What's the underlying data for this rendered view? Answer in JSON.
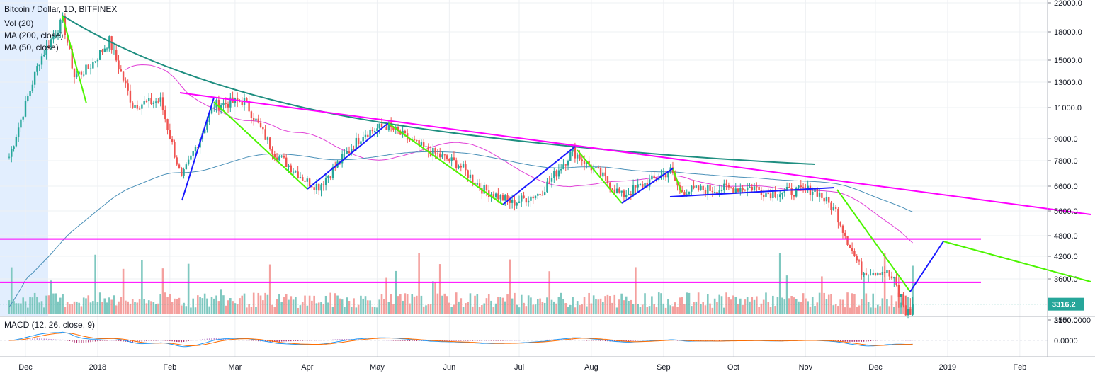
{
  "chart_data": {
    "type": "candlestick",
    "title": "Bitcoin / Dollar, 1D, BITFINEX",
    "indicators": [
      "Vol (20)",
      "MA (200, close)",
      "MA (50, close)"
    ],
    "macd_label": "MACD (12, 26, close, 9)",
    "last_price": "3316.2",
    "last_price_value": 3316.2,
    "y_ticks": [
      "22000.0",
      "18000.0",
      "15000.0",
      "13000.0",
      "11000.0",
      "9000.0",
      "7800.0",
      "6600.0",
      "5600.0",
      "4800.0",
      "4200.0",
      "3600.0",
      "3150.0"
    ],
    "y_tick_values": [
      22000,
      18000,
      15000,
      13000,
      11000,
      9000,
      7800,
      6600,
      5600,
      4800,
      4200,
      3600,
      3150
    ],
    "macd_ticks": [
      "2500.0000",
      "0.0000"
    ],
    "macd_tick_values": [
      2500,
      0
    ],
    "x_labels": [
      "Dec",
      "2018",
      "Feb",
      "Mar",
      "Apr",
      "May",
      "Jun",
      "Jul",
      "Aug",
      "Sep",
      "Oct",
      "Nov",
      "Dec",
      "2019",
      "Feb"
    ],
    "x_label_dates": [
      "2017-12-01",
      "2018-01-01",
      "2018-02-01",
      "2018-03-01",
      "2018-04-01",
      "2018-05-01",
      "2018-06-01",
      "2018-07-01",
      "2018-08-01",
      "2018-09-01",
      "2018-10-01",
      "2018-11-01",
      "2018-12-01",
      "2019-01-01",
      "2019-02-01"
    ],
    "price_key_points": [
      {
        "date": "2017-11-24",
        "close": 8000
      },
      {
        "date": "2017-12-07",
        "close": 15000
      },
      {
        "date": "2017-12-17",
        "close": 19500
      },
      {
        "date": "2017-12-22",
        "close": 13500
      },
      {
        "date": "2017-12-28",
        "close": 14200
      },
      {
        "date": "2018-01-06",
        "close": 17000
      },
      {
        "date": "2018-01-16",
        "close": 11200
      },
      {
        "date": "2018-01-28",
        "close": 11500
      },
      {
        "date": "2018-02-06",
        "close": 6900
      },
      {
        "date": "2018-02-20",
        "close": 11200
      },
      {
        "date": "2018-03-05",
        "close": 11500
      },
      {
        "date": "2018-03-18",
        "close": 8200
      },
      {
        "date": "2018-04-01",
        "close": 6800
      },
      {
        "date": "2018-04-06",
        "close": 6600
      },
      {
        "date": "2018-04-25",
        "close": 9300
      },
      {
        "date": "2018-05-05",
        "close": 9800
      },
      {
        "date": "2018-05-20",
        "close": 8500
      },
      {
        "date": "2018-06-05",
        "close": 7600
      },
      {
        "date": "2018-06-15",
        "close": 6500
      },
      {
        "date": "2018-06-28",
        "close": 5900
      },
      {
        "date": "2018-07-10",
        "close": 6300
      },
      {
        "date": "2018-07-24",
        "close": 8300
      },
      {
        "date": "2018-08-06",
        "close": 7000
      },
      {
        "date": "2018-08-14",
        "close": 6200
      },
      {
        "date": "2018-09-04",
        "close": 7300
      },
      {
        "date": "2018-09-08",
        "close": 6400
      },
      {
        "date": "2018-10-10",
        "close": 6550
      },
      {
        "date": "2018-10-15",
        "close": 6300
      },
      {
        "date": "2018-11-05",
        "close": 6450
      },
      {
        "date": "2018-11-14",
        "close": 5600
      },
      {
        "date": "2018-11-20",
        "close": 4500
      },
      {
        "date": "2018-11-25",
        "close": 3800
      },
      {
        "date": "2018-12-05",
        "close": 3800
      },
      {
        "date": "2018-12-15",
        "close": 3200
      },
      {
        "date": "2018-12-17",
        "close": 3316.2
      }
    ],
    "drawn_lines": [
      {
        "name": "resistance-curve",
        "color": "#1e8e80"
      },
      {
        "name": "descending-trendline",
        "color": "#ff00ff"
      },
      {
        "name": "horizontal-level-4800",
        "color": "#ff00ff",
        "price": 4700
      },
      {
        "name": "horizontal-level-3600",
        "color": "#ff00ff",
        "price": 3560
      },
      {
        "name": "projection-up",
        "color": "#1a1aff"
      },
      {
        "name": "projection-down",
        "color": "#4cf500"
      }
    ],
    "colors": {
      "up": "#26a69a",
      "down": "#ef5350",
      "ma50": "#e040d6",
      "ma200": "#4a90b8",
      "highlight": "#dbeafe"
    }
  }
}
